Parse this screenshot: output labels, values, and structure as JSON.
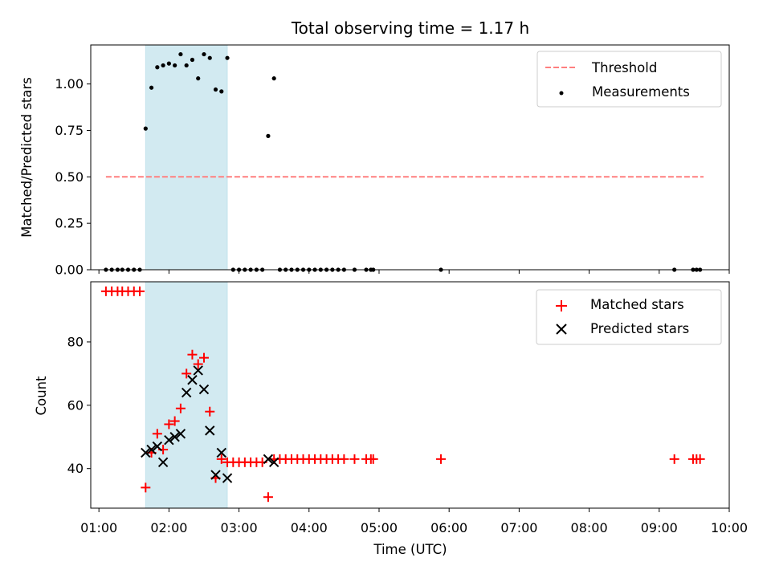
{
  "chart_data": {
    "type": "scatter",
    "title": "Total observing time = 1.17 h",
    "xlabel": "Time (UTC)",
    "x_ticks": [
      "01:00",
      "02:00",
      "03:00",
      "04:00",
      "05:00",
      "06:00",
      "07:00",
      "08:00",
      "09:00",
      "10:00"
    ],
    "x_range": [
      "00:53",
      "10:00"
    ],
    "highlight_span": {
      "start": "01:40",
      "end": "02:50"
    },
    "panels": [
      {
        "ylabel": "Matched/Predicted stars",
        "ylim": [
          0,
          1.21
        ],
        "y_ticks": [
          "0.00",
          "0.25",
          "0.50",
          "0.75",
          "1.00"
        ],
        "threshold": {
          "name": "Threshold",
          "value": 0.5,
          "x_start": "01:06",
          "x_end": "09:38",
          "color": "#ff7f7f"
        },
        "measurements": {
          "name": "Measurements",
          "color": "#000000",
          "x": [
            "01:06",
            "01:11",
            "01:16",
            "01:20",
            "01:25",
            "01:30",
            "01:35",
            "01:40",
            "01:45",
            "01:50",
            "01:55",
            "02:00",
            "02:05",
            "02:10",
            "02:15",
            "02:20",
            "02:25",
            "02:30",
            "02:35",
            "02:40",
            "02:45",
            "02:50",
            "02:55",
            "03:00",
            "03:05",
            "03:10",
            "03:15",
            "03:20",
            "03:25",
            "03:30",
            "03:35",
            "03:40",
            "03:45",
            "03:50",
            "03:55",
            "04:00",
            "04:05",
            "04:10",
            "04:15",
            "04:20",
            "04:25",
            "04:30",
            "04:39",
            "04:49",
            "04:53",
            "04:55",
            "05:53",
            "09:13",
            "09:29",
            "09:32",
            "09:35"
          ],
          "y": [
            0,
            0,
            0,
            0,
            0,
            0,
            0,
            0.76,
            0.98,
            1.09,
            1.1,
            1.11,
            1.1,
            1.16,
            1.1,
            1.13,
            1.03,
            1.16,
            1.14,
            0.97,
            0.96,
            1.14,
            0,
            0,
            0,
            0,
            0,
            0,
            0.72,
            1.03,
            0,
            0,
            0,
            0,
            0,
            0,
            0,
            0,
            0,
            0,
            0,
            0,
            0,
            0,
            0,
            0,
            0,
            0,
            0,
            0,
            0
          ]
        },
        "legend": {
          "position": "upper right",
          "entries": [
            "Threshold",
            "Measurements"
          ]
        }
      },
      {
        "ylabel": "Count",
        "ylim": [
          27.5,
          99
        ],
        "y_ticks": [
          "40",
          "60",
          "80"
        ],
        "matched": {
          "name": "Matched stars",
          "color": "#ff0000",
          "x": [
            "01:06",
            "01:11",
            "01:16",
            "01:20",
            "01:25",
            "01:30",
            "01:35",
            "01:40",
            "01:45",
            "01:50",
            "01:55",
            "02:00",
            "02:05",
            "02:10",
            "02:15",
            "02:20",
            "02:25",
            "02:30",
            "02:35",
            "02:40",
            "02:45",
            "02:50",
            "02:55",
            "03:00",
            "03:05",
            "03:10",
            "03:15",
            "03:20",
            "03:25",
            "03:30",
            "03:35",
            "03:40",
            "03:45",
            "03:50",
            "03:55",
            "04:00",
            "04:05",
            "04:10",
            "04:15",
            "04:20",
            "04:25",
            "04:30",
            "04:39",
            "04:49",
            "04:53",
            "04:55",
            "05:53",
            "09:13",
            "09:29",
            "09:32",
            "09:35"
          ],
          "y": [
            96,
            96,
            96,
            96,
            96,
            96,
            96,
            34,
            45,
            51,
            46,
            54,
            55,
            59,
            70,
            76,
            73,
            75,
            58,
            37,
            43,
            42,
            42,
            42,
            42,
            42,
            42,
            42,
            31,
            43,
            43,
            43,
            43,
            43,
            43,
            43,
            43,
            43,
            43,
            43,
            43,
            43,
            43,
            43,
            43,
            43,
            43,
            43,
            43,
            43,
            43
          ]
        },
        "predicted": {
          "name": "Predicted stars",
          "color": "#000000",
          "x": [
            "01:40",
            "01:45",
            "01:50",
            "01:55",
            "02:00",
            "02:05",
            "02:10",
            "02:15",
            "02:20",
            "02:25",
            "02:30",
            "02:35",
            "02:40",
            "02:45",
            "02:50",
            "03:25",
            "03:30"
          ],
          "y": [
            45,
            46,
            47,
            42,
            49,
            50,
            51,
            64,
            68,
            71,
            65,
            52,
            38,
            45,
            37,
            43,
            42
          ]
        },
        "legend": {
          "position": "upper right",
          "entries": [
            "Matched stars",
            "Predicted stars"
          ]
        }
      }
    ]
  }
}
